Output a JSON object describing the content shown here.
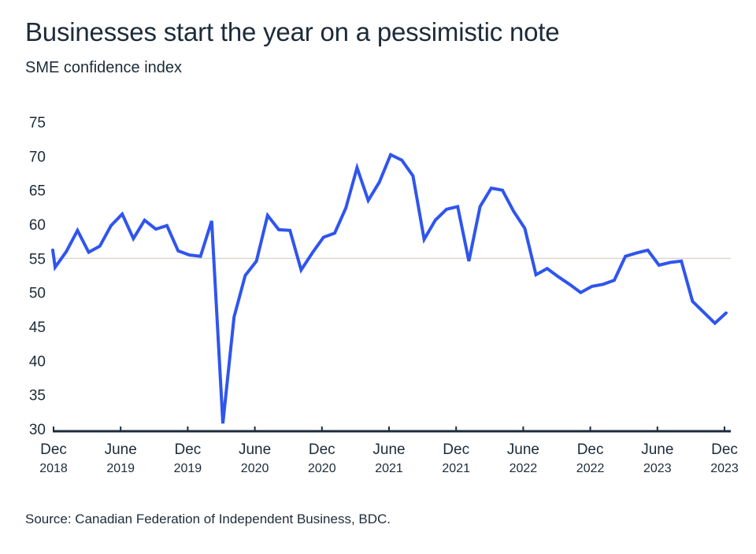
{
  "chart_data": {
    "type": "line",
    "title": "Businesses start the year on a pessimistic note",
    "subtitle": "SME confidence index",
    "source": "Source: Canadian Federation of Independent Business, BDC.",
    "xlabel": "",
    "ylabel": "",
    "ylim": [
      30,
      75
    ],
    "yticks": [
      75,
      70,
      65,
      60,
      55,
      50,
      45,
      40,
      35,
      30
    ],
    "reference_line": 55,
    "grid": false,
    "colors": {
      "line": "#2f55ee",
      "reference": "#ddd6d0",
      "axis": "#1c2b39",
      "text": "#1c2b39"
    },
    "xticks": [
      {
        "month": "Dec",
        "year": "2018",
        "date": "2018-12"
      },
      {
        "month": "June",
        "year": "2019",
        "date": "2019-06"
      },
      {
        "month": "Dec",
        "year": "2019",
        "date": "2019-12"
      },
      {
        "month": "June",
        "year": "2020",
        "date": "2020-06"
      },
      {
        "month": "Dec",
        "year": "2020",
        "date": "2020-12"
      },
      {
        "month": "June",
        "year": "2021",
        "date": "2021-06"
      },
      {
        "month": "Dec",
        "year": "2021",
        "date": "2021-12"
      },
      {
        "month": "June",
        "year": "2022",
        "date": "2022-06"
      },
      {
        "month": "Dec",
        "year": "2022",
        "date": "2022-12"
      },
      {
        "month": "June",
        "year": "2023",
        "date": "2023-06"
      },
      {
        "month": "Dec",
        "year": "2023",
        "date": "2023-12"
      }
    ],
    "x": [
      "2018-11",
      "2018-12",
      "2019-01",
      "2019-02",
      "2019-03",
      "2019-04",
      "2019-05",
      "2019-06",
      "2019-07",
      "2019-08",
      "2019-09",
      "2019-10",
      "2019-11",
      "2019-12",
      "2020-01",
      "2020-02",
      "2020-03",
      "2020-04",
      "2020-05",
      "2020-06",
      "2020-07",
      "2020-08",
      "2020-09",
      "2020-10",
      "2020-11",
      "2020-12",
      "2021-01",
      "2021-02",
      "2021-03",
      "2021-04",
      "2021-05",
      "2021-06",
      "2021-07",
      "2021-08",
      "2021-09",
      "2021-10",
      "2021-11",
      "2021-12",
      "2022-01",
      "2022-02",
      "2022-03",
      "2022-04",
      "2022-05",
      "2022-06",
      "2022-07",
      "2022-08",
      "2022-09",
      "2022-10",
      "2022-11",
      "2022-12",
      "2023-01",
      "2023-02",
      "2023-03",
      "2023-04",
      "2023-05",
      "2023-06",
      "2023-07",
      "2023-08",
      "2023-09",
      "2023-10",
      "2023-11",
      "2023-12"
    ],
    "series": [
      {
        "values": [
          56.2,
          53.7,
          56.0,
          59.1,
          55.9,
          56.8,
          59.8,
          61.5,
          57.9,
          60.6,
          59.3,
          59.8,
          56.1,
          55.5,
          55.3,
          60.5,
          30.8,
          46.4,
          52.5,
          54.6,
          61.3,
          59.2,
          59.1,
          53.3,
          55.8,
          58.1,
          58.7,
          62.4,
          68.3,
          63.5,
          66.2,
          70.2,
          69.4,
          67.1,
          57.8,
          60.6,
          62.2,
          62.6,
          54.6,
          62.6,
          65.3,
          65.0,
          61.9,
          59.4,
          52.6,
          53.5,
          52.3,
          51.2,
          50.0,
          50.9,
          51.2,
          51.8,
          55.3,
          55.8,
          56.2,
          54.0,
          54.4,
          54.6,
          48.7,
          47.1,
          45.5,
          47.0
        ]
      }
    ]
  }
}
